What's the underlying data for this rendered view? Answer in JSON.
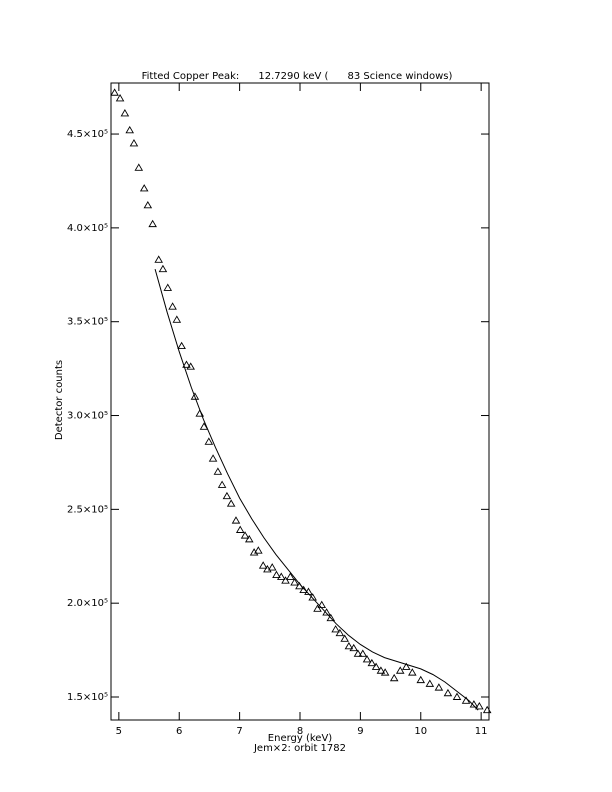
{
  "chart_data": {
    "type": "scatter",
    "title": "Fitted Copper Peak:      12.7290 keV (      83 Science windows)",
    "x_label": "Energy (keV)",
    "y_label": "Detector counts",
    "subtitle": "Jem×2: orbit 1782",
    "xlim": [
      4.87,
      11.13
    ],
    "ylim": [
      137750,
      477200
    ],
    "xticks": [
      5,
      6,
      7,
      8,
      9,
      10,
      11
    ],
    "yticks": [
      {
        "value": 150000,
        "label": "1.5×10⁵"
      },
      {
        "value": 200000,
        "label": "2.0×10⁵"
      },
      {
        "value": 250000,
        "label": "2.5×10⁵"
      },
      {
        "value": 300000,
        "label": "3.0×10⁵"
      },
      {
        "value": 350000,
        "label": "3.5×10⁵"
      },
      {
        "value": 400000,
        "label": "4.0×10⁵"
      },
      {
        "value": 450000,
        "label": "4.5×10⁵"
      }
    ],
    "series": [
      {
        "marker": "triangle",
        "color": "#000000",
        "x": [
          4.93,
          5.02,
          5.1,
          5.18,
          5.25,
          5.33,
          5.42,
          5.48,
          5.56,
          5.66,
          5.73,
          5.81,
          5.89,
          5.96,
          6.04,
          6.12,
          6.19,
          6.26,
          6.34,
          6.41,
          6.49,
          6.56,
          6.64,
          6.71,
          6.79,
          6.86,
          6.94,
          7.01,
          7.09,
          7.16,
          7.24,
          7.31,
          7.39,
          7.46,
          7.54,
          7.61,
          7.69,
          7.76,
          7.84,
          7.91,
          7.99,
          8.06,
          8.14,
          8.21,
          8.29,
          8.36,
          8.44,
          8.51,
          8.59,
          8.66,
          8.74,
          8.81,
          8.89,
          8.96,
          9.04,
          9.11,
          9.19,
          9.26,
          9.34,
          9.41,
          9.56,
          9.66,
          9.76,
          9.86,
          10.0,
          10.15,
          10.3,
          10.45,
          10.6,
          10.75,
          10.88,
          10.97,
          11.1
        ],
        "values": [
          472000,
          469000,
          461000,
          452000,
          445000,
          432000,
          421000,
          412000,
          402000,
          383000,
          378000,
          368000,
          358000,
          351000,
          337000,
          327000,
          326000,
          310000,
          301000,
          294000,
          286000,
          277000,
          270000,
          263000,
          257000,
          253000,
          244000,
          239000,
          236000,
          234000,
          227000,
          228000,
          220000,
          218000,
          219000,
          215000,
          214000,
          212000,
          214000,
          211000,
          209000,
          207000,
          206000,
          203000,
          197000,
          199000,
          195000,
          192000,
          186000,
          184000,
          181000,
          177000,
          176000,
          173000,
          173000,
          170000,
          168000,
          166000,
          164000,
          163000,
          160000,
          164000,
          166000,
          163000,
          159000,
          157000,
          155000,
          152000,
          150000,
          148000,
          146000,
          145000,
          143000
        ]
      },
      {
        "marker": "line",
        "color": "#000000",
        "x": [
          5.6,
          5.8,
          6.0,
          6.2,
          6.4,
          6.6,
          6.8,
          7.0,
          7.2,
          7.4,
          7.6,
          7.8,
          8.0,
          8.2,
          8.4,
          8.6,
          8.8,
          9.0,
          9.2,
          9.4,
          9.6,
          9.8,
          10.0,
          10.2,
          10.4,
          10.6,
          10.8,
          10.95
        ],
        "values": [
          378000,
          355000,
          334000,
          315000,
          298000,
          283000,
          269000,
          256000,
          245000,
          235000,
          226000,
          218000,
          210000,
          203000,
          196000,
          189000,
          183000,
          178000,
          174000,
          171000,
          169000,
          167000,
          165000,
          162000,
          158000,
          153000,
          148000,
          143000
        ]
      }
    ]
  }
}
